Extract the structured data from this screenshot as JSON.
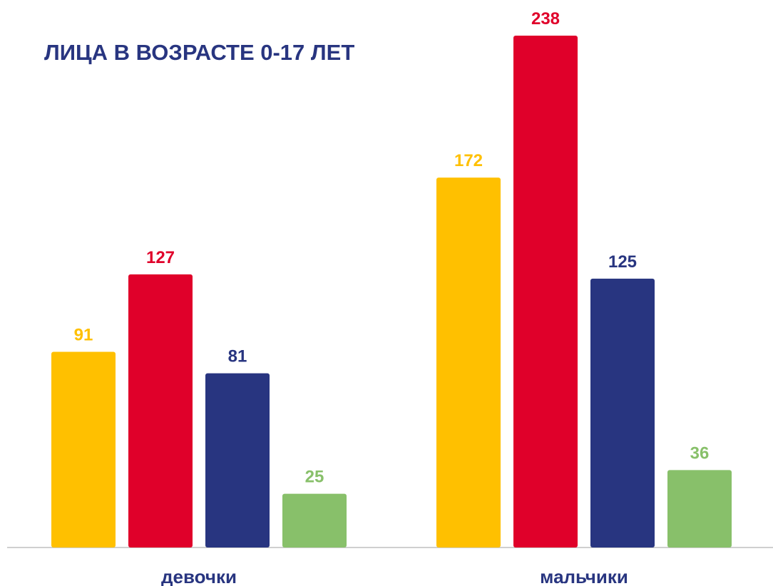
{
  "chart_data": {
    "type": "bar",
    "title": "ЛИЦА В ВОЗРАСТЕ 0-17 ЛЕТ",
    "categories": [
      "девочки",
      "мальчики"
    ],
    "series": [
      {
        "color": "#FFC000",
        "values": [
          91,
          172
        ]
      },
      {
        "color": "#E0002A",
        "values": [
          127,
          238
        ]
      },
      {
        "color": "#283580",
        "values": [
          81,
          125
        ]
      },
      {
        "color": "#88C06A",
        "values": [
          25,
          36
        ]
      }
    ]
  }
}
